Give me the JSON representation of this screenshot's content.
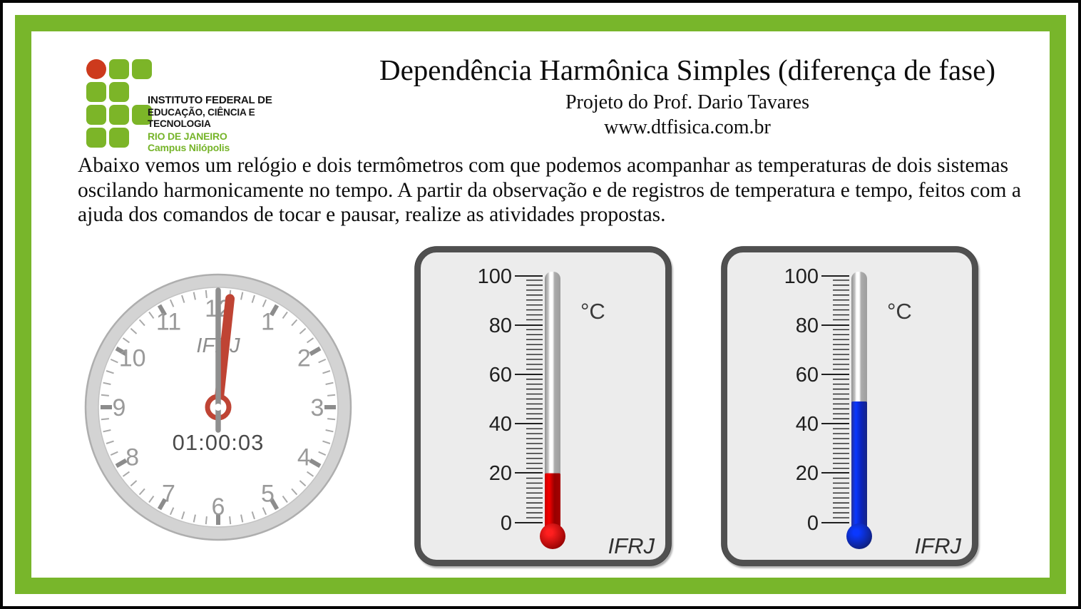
{
  "frame": {
    "border_color": "#78b62b"
  },
  "logo": {
    "institution_line1": "INSTITUTO FEDERAL DE",
    "institution_line2": "EDUCAÇÃO, CIÊNCIA E TECNOLOGIA",
    "region": "RIO DE JANEIRO",
    "campus": "Campus Nilópolis",
    "green": "#7cb528",
    "red": "#cd3a1d"
  },
  "header": {
    "title": "Dependência Harmônica Simples (diferença de fase)",
    "subtitle": "Projeto do Prof. Dario Tavares",
    "website": "www.dtfisica.com.br"
  },
  "intro": {
    "text": "Abaixo vemos um relógio e dois termômetros com que podemos acompanhar as temperaturas de dois sistemas oscilando harmonicamente no tempo. A partir da observação e de registros de temperatura e tempo, feitos com a ajuda dos comandos de tocar e pausar, realize as atividades propostas."
  },
  "clock": {
    "brand": "IFRJ",
    "digital_time": "01:00:03",
    "numerals": [
      "1",
      "2",
      "3",
      "4",
      "5",
      "6",
      "7",
      "8",
      "9",
      "10",
      "11",
      "12"
    ],
    "second_hand_color": "#bf4434",
    "minute_hand_color": "#8f8f8f",
    "second_hand_angle_deg": 6.2
  },
  "thermometers": {
    "unit": "°C",
    "brand": "IFRJ",
    "scale_labels": [
      "100",
      "80",
      "60",
      "40",
      "20",
      "0"
    ],
    "scale_min": 0,
    "scale_max": 100,
    "minor_step": 2,
    "major_step": 20,
    "left": {
      "value": 20,
      "fluid": "red",
      "stops": [
        "#cc0000",
        "#f50000",
        "#970000",
        "#a50000"
      ],
      "bulb_bright": "#ff1f1f",
      "bulb_dark": "#8a0000"
    },
    "right": {
      "value": 49,
      "fluid": "blue",
      "stops": [
        "#25309a",
        "#0a38ff",
        "#0b24bb",
        "#172585"
      ],
      "bulb_bright": "#0a38ff",
      "bulb_dark": "#101d6e"
    }
  }
}
